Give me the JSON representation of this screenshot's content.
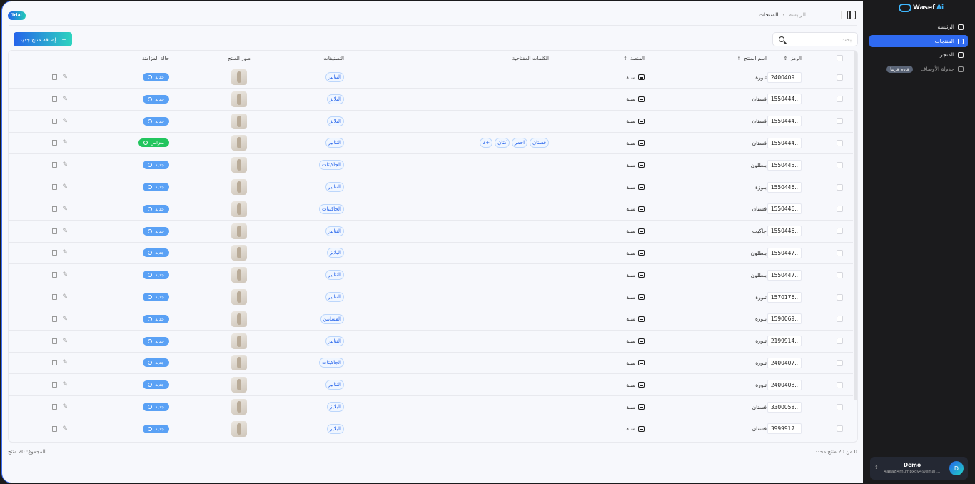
{
  "header": {
    "trial": "Trial",
    "breadcrumb_home": "الرئيسة",
    "breadcrumb_sep": "›",
    "breadcrumb_current": "المنتجات"
  },
  "toolbar": {
    "add_label": "إضافة منتج جديد",
    "add_icon": "+",
    "search_placeholder": "بحث"
  },
  "table": {
    "headers": {
      "code": "الرمز",
      "name": "اسم المنتج",
      "platform": "المنصة",
      "keywords": "الكلمات المفتاحية",
      "categories": "التصنيفات",
      "images": "صور المنتج",
      "sync": "حالة المزامنة"
    },
    "rows": [
      {
        "code": "2400409..",
        "name": "تنورة",
        "platform": "سلة",
        "keywords": [],
        "category": "التنانير",
        "status": "جديد",
        "synced": false
      },
      {
        "code": "1550444..",
        "name": "فستان",
        "platform": "سلة",
        "keywords": [],
        "category": "البلايز",
        "status": "جديد",
        "synced": false
      },
      {
        "code": "1550444..",
        "name": "فستان",
        "platform": "سلة",
        "keywords": [],
        "category": "البلايز",
        "status": "جديد",
        "synced": false
      },
      {
        "code": "1550444..",
        "name": "فستان",
        "platform": "سلة",
        "keywords": [
          "فستان",
          "احمر",
          "كتان",
          "+2"
        ],
        "category": "التنانير",
        "status": "متزامن",
        "synced": true
      },
      {
        "code": "1550445..",
        "name": "بنطلون",
        "platform": "سلة",
        "keywords": [],
        "category": "الجاكيتات",
        "status": "جديد",
        "synced": false
      },
      {
        "code": "1550446..",
        "name": "بلوزة",
        "platform": "سلة",
        "keywords": [],
        "category": "التنانير",
        "status": "جديد",
        "synced": false
      },
      {
        "code": "1550446..",
        "name": "فستان",
        "platform": "سلة",
        "keywords": [],
        "category": "الجاكيتات",
        "status": "جديد",
        "synced": false
      },
      {
        "code": "1550446..",
        "name": "جاكيت",
        "platform": "سلة",
        "keywords": [],
        "category": "التنانير",
        "status": "جديد",
        "synced": false
      },
      {
        "code": "1550447..",
        "name": "بنطلون",
        "platform": "سلة",
        "keywords": [],
        "category": "البلايز",
        "status": "جديد",
        "synced": false
      },
      {
        "code": "1550447..",
        "name": "بنطلون",
        "platform": "سلة",
        "keywords": [],
        "category": "التنانير",
        "status": "جديد",
        "synced": false
      },
      {
        "code": "1570176..",
        "name": "تنورة",
        "platform": "سلة",
        "keywords": [],
        "category": "التنانير",
        "status": "جديد",
        "synced": false
      },
      {
        "code": "1590069..",
        "name": "بلوزة",
        "platform": "سلة",
        "keywords": [],
        "category": "الفساتين",
        "status": "جديد",
        "synced": false
      },
      {
        "code": "2199914..",
        "name": "تنورة",
        "platform": "سلة",
        "keywords": [],
        "category": "التنانير",
        "status": "جديد",
        "synced": false
      },
      {
        "code": "2400407..",
        "name": "تنورة",
        "platform": "سلة",
        "keywords": [],
        "category": "الجاكيتات",
        "status": "جديد",
        "synced": false
      },
      {
        "code": "2400408..",
        "name": "تنورة",
        "platform": "سلة",
        "keywords": [],
        "category": "التنانير",
        "status": "جديد",
        "synced": false
      },
      {
        "code": "3300058..",
        "name": "فستان",
        "platform": "سلة",
        "keywords": [],
        "category": "البلايز",
        "status": "جديد",
        "synced": false
      },
      {
        "code": "3999917..",
        "name": "فستان",
        "platform": "سلة",
        "keywords": [],
        "category": "البلايز",
        "status": "جديد",
        "synced": false
      }
    ]
  },
  "footer": {
    "selected": "0 من 20 منتج محدد",
    "total": "المجموع: 20 منتج"
  },
  "sidebar": {
    "logo": "Wasef",
    "logo_ai": "Ai",
    "items": [
      {
        "label": "الرئيسة",
        "icon": "home-icon"
      },
      {
        "label": "المنتجات",
        "icon": "products-icon",
        "active": true
      },
      {
        "label": "المتجر",
        "icon": "store-icon"
      },
      {
        "label": "جدولة الأوصاف",
        "icon": "calendar-icon",
        "badge": "قادم قريبا"
      }
    ]
  },
  "user": {
    "initial": "D",
    "name": "Demo",
    "email": "4aeazj4mumpxdv4@email..."
  },
  "colors": {
    "accent": "#2f6af0",
    "synced": "#22c55e",
    "new": "#5aa1f5",
    "sidebar": "#1b1b1d"
  }
}
